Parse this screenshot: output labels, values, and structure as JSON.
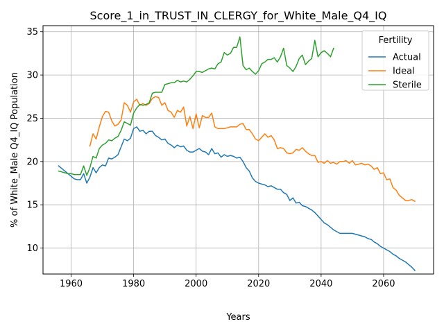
{
  "chart_data": {
    "type": "line",
    "title": "Score_1_in_TRUST_IN_CLERGY_for_White_Male_Q4_IQ",
    "xlabel": "Years",
    "ylabel": "% of White_Male Q4_IQ Population",
    "xlim": [
      1951,
      2076
    ],
    "ylim": [
      7.0,
      35.7
    ],
    "xticks": [
      1960,
      1980,
      2000,
      2020,
      2040,
      2060
    ],
    "yticks": [
      10,
      15,
      20,
      25,
      30,
      35
    ],
    "grid": true,
    "legend": {
      "title": "Fertility",
      "placement": "top-right"
    },
    "series": [
      {
        "name": "Actual",
        "color": "#1f77b4",
        "x": [
          1956,
          1957,
          1958,
          1959,
          1960,
          1961,
          1962,
          1963,
          1964,
          1965,
          1966,
          1967,
          1968,
          1969,
          1970,
          1971,
          1972,
          1973,
          1974,
          1975,
          1976,
          1977,
          1978,
          1979,
          1980,
          1981,
          1982,
          1983,
          1984,
          1985,
          1986,
          1987,
          1988,
          1989,
          1990,
          1991,
          1992,
          1993,
          1994,
          1995,
          1996,
          1997,
          1998,
          1999,
          2000,
          2001,
          2002,
          2003,
          2004,
          2005,
          2006,
          2007,
          2008,
          2009,
          2010,
          2011,
          2012,
          2013,
          2014,
          2015,
          2016,
          2017,
          2018,
          2019,
          2020,
          2021,
          2022,
          2023,
          2024,
          2025,
          2026,
          2027,
          2028,
          2029,
          2030,
          2031,
          2032,
          2033,
          2034,
          2035,
          2036,
          2037,
          2038,
          2039,
          2040,
          2041,
          2042,
          2043,
          2044,
          2045,
          2046,
          2047,
          2048,
          2049,
          2050,
          2051,
          2052,
          2053,
          2054,
          2055,
          2056,
          2057,
          2058,
          2059,
          2060,
          2061,
          2062,
          2063,
          2064,
          2065,
          2066,
          2067,
          2068,
          2069,
          2070
        ],
        "values": [
          19.5,
          19.2,
          18.9,
          18.6,
          18.3,
          18.0,
          17.9,
          17.9,
          18.6,
          17.5,
          18.2,
          19.3,
          18.7,
          19.3,
          19.6,
          19.5,
          20.4,
          20.3,
          20.5,
          20.8,
          21.7,
          22.6,
          22.4,
          22.7,
          23.8,
          24.0,
          23.5,
          23.6,
          23.2,
          23.5,
          23.5,
          23.0,
          22.8,
          22.5,
          22.6,
          22.1,
          21.9,
          21.6,
          21.9,
          21.7,
          21.8,
          21.3,
          21.1,
          21.1,
          21.3,
          21.5,
          21.2,
          21.1,
          20.8,
          21.5,
          20.9,
          21.0,
          20.5,
          20.8,
          20.6,
          20.7,
          20.6,
          20.4,
          20.5,
          20.0,
          19.3,
          18.9,
          18.1,
          17.7,
          17.5,
          17.4,
          17.3,
          17.1,
          17.2,
          17.0,
          16.8,
          16.8,
          16.4,
          16.2,
          15.5,
          15.8,
          15.2,
          15.3,
          14.9,
          14.8,
          14.6,
          14.4,
          14.1,
          13.7,
          13.3,
          12.9,
          12.7,
          12.4,
          12.1,
          11.9,
          11.7,
          11.7,
          11.7,
          11.7,
          11.7,
          11.6,
          11.5,
          11.4,
          11.3,
          11.1,
          11.0,
          10.7,
          10.5,
          10.2,
          10.0,
          9.8,
          9.6,
          9.3,
          9.1,
          8.8,
          8.6,
          8.4,
          8.1,
          7.8,
          7.4
        ]
      },
      {
        "name": "Ideal",
        "color": "#ff7f0e",
        "x": [
          1966,
          1967,
          1968,
          1969,
          1970,
          1971,
          1972,
          1973,
          1974,
          1975,
          1976,
          1977,
          1978,
          1979,
          1980,
          1981,
          1982,
          1983,
          1984,
          1985,
          1986,
          1987,
          1988,
          1989,
          1990,
          1991,
          1992,
          1993,
          1994,
          1995,
          1996,
          1997,
          1998,
          1999,
          2000,
          2001,
          2002,
          2003,
          2004,
          2005,
          2006,
          2007,
          2008,
          2009,
          2010,
          2011,
          2012,
          2013,
          2014,
          2015,
          2016,
          2017,
          2018,
          2019,
          2020,
          2021,
          2022,
          2023,
          2024,
          2025,
          2026,
          2027,
          2028,
          2029,
          2030,
          2031,
          2032,
          2033,
          2034,
          2035,
          2036,
          2037,
          2038,
          2039,
          2040,
          2041,
          2042,
          2043,
          2044,
          2045,
          2046,
          2047,
          2048,
          2049,
          2050,
          2051,
          2052,
          2053,
          2054,
          2055,
          2056,
          2057,
          2058,
          2059,
          2060,
          2061,
          2062,
          2063,
          2064,
          2065,
          2066,
          2067,
          2068,
          2069,
          2070
        ],
        "values": [
          21.8,
          23.2,
          22.6,
          24.0,
          25.2,
          25.8,
          25.7,
          24.7,
          24.1,
          24.3,
          24.8,
          26.8,
          26.5,
          25.7,
          26.9,
          27.2,
          26.5,
          26.7,
          26.5,
          26.7,
          27.3,
          27.5,
          27.4,
          26.5,
          26.8,
          25.9,
          25.7,
          25.1,
          25.9,
          25.7,
          26.3,
          24.1,
          25.2,
          23.8,
          25.5,
          23.9,
          25.3,
          25.1,
          25.1,
          25.6,
          24.0,
          23.8,
          23.8,
          23.8,
          23.9,
          24.0,
          24.0,
          24.0,
          24.3,
          24.4,
          23.7,
          23.7,
          23.2,
          22.6,
          22.4,
          22.8,
          23.2,
          22.8,
          23.0,
          22.5,
          21.5,
          21.6,
          21.5,
          21.0,
          20.9,
          21.0,
          21.4,
          21.3,
          21.6,
          21.2,
          20.9,
          20.7,
          20.7,
          19.9,
          20.0,
          19.8,
          20.1,
          19.8,
          19.9,
          19.7,
          20.0,
          20.0,
          20.1,
          19.8,
          20.1,
          19.6,
          19.7,
          19.8,
          19.6,
          19.7,
          19.5,
          19.1,
          19.3,
          18.6,
          18.7,
          17.9,
          18.0,
          17.0,
          16.7,
          16.1,
          15.8,
          15.5,
          15.5,
          15.6,
          15.4
        ]
      },
      {
        "name": "Sterile",
        "color": "#2ca02c",
        "x": [
          1956,
          1957,
          1958,
          1959,
          1960,
          1961,
          1962,
          1963,
          1964,
          1965,
          1966,
          1967,
          1968,
          1969,
          1970,
          1971,
          1972,
          1973,
          1974,
          1975,
          1976,
          1977,
          1978,
          1979,
          1980,
          1981,
          1982,
          1983,
          1984,
          1985,
          1986,
          1987,
          1988,
          1989,
          1990,
          1991,
          1992,
          1993,
          1994,
          1995,
          1996,
          1997,
          1998,
          1999,
          2000,
          2001,
          2002,
          2003,
          2004,
          2005,
          2006,
          2007,
          2008,
          2009,
          2010,
          2011,
          2012,
          2013,
          2014,
          2015,
          2016,
          2017,
          2018,
          2019,
          2020,
          2021,
          2022,
          2023,
          2024,
          2025,
          2026,
          2027,
          2028,
          2029,
          2030,
          2031,
          2032,
          2033,
          2034,
          2035,
          2036,
          2037,
          2038,
          2039,
          2040,
          2041,
          2042,
          2043,
          2044
        ],
        "values": [
          18.9,
          18.8,
          18.7,
          18.6,
          18.6,
          18.5,
          18.5,
          18.5,
          19.5,
          18.4,
          19.3,
          20.6,
          20.4,
          21.5,
          21.9,
          22.1,
          22.5,
          22.4,
          22.7,
          22.9,
          23.6,
          24.6,
          24.4,
          24.2,
          25.6,
          26.2,
          26.6,
          26.5,
          26.6,
          26.8,
          27.9,
          28.0,
          28.0,
          28.0,
          28.9,
          29.0,
          29.1,
          29.1,
          29.4,
          29.2,
          29.3,
          29.2,
          29.5,
          29.9,
          30.4,
          30.4,
          30.3,
          30.5,
          30.7,
          30.8,
          30.7,
          31.3,
          31.5,
          32.6,
          32.3,
          32.5,
          33.2,
          33.2,
          34.4,
          31.1,
          30.6,
          30.8,
          30.4,
          30.1,
          30.5,
          31.3,
          31.5,
          31.8,
          31.8,
          32.0,
          31.5,
          32.1,
          33.1,
          31.1,
          30.8,
          30.4,
          31.0,
          31.9,
          32.3,
          31.2,
          31.6,
          31.9,
          34.0,
          32.1,
          32.6,
          32.8,
          32.5,
          32.1,
          33.1
        ]
      }
    ]
  }
}
